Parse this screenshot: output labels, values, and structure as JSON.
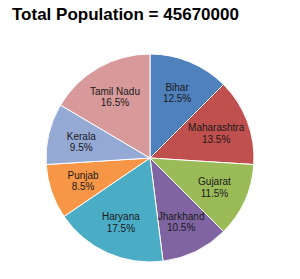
{
  "chart_data": {
    "type": "pie",
    "title": "Total Population = 45670000",
    "categories": [
      "Bihar",
      "Maharashtra",
      "Gujarat",
      "Jharkhand",
      "Haryana",
      "Punjab",
      "Kerala",
      "Tamil Nadu"
    ],
    "values": [
      12.5,
      13.5,
      11.5,
      10.5,
      17.5,
      8.5,
      9.5,
      16.5
    ],
    "value_labels": [
      "12.5%",
      "13.5%",
      "11.5%",
      "10.5%",
      "17.5%",
      "8.5%",
      "9.5%",
      "16.5%"
    ],
    "colors": [
      "#4f81bd",
      "#c0504d",
      "#9bbb59",
      "#8064a2",
      "#4bacc6",
      "#f79646",
      "#95a9d5",
      "#d8999a"
    ],
    "data_labels": true
  }
}
